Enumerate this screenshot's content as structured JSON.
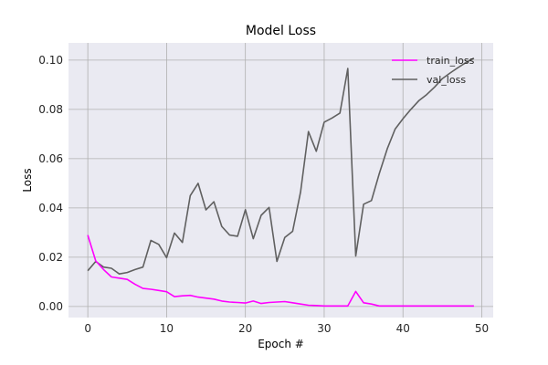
{
  "chart_data": {
    "type": "line",
    "title": "Model Loss",
    "xlabel": "Epoch #",
    "ylabel": "Loss",
    "xlim": [
      -2.45,
      51.45
    ],
    "ylim": [
      -0.0045,
      0.107
    ],
    "x_ticks": [
      0,
      10,
      20,
      30,
      40,
      50
    ],
    "y_ticks": [
      0.0,
      0.02,
      0.04,
      0.06,
      0.08,
      0.1
    ],
    "y_tick_labels": [
      "0.00",
      "0.02",
      "0.04",
      "0.06",
      "0.08",
      "0.10"
    ],
    "grid": true,
    "legend_position": "top-right",
    "x": [
      0,
      1,
      2,
      3,
      4,
      5,
      6,
      7,
      8,
      9,
      10,
      11,
      12,
      13,
      14,
      15,
      16,
      17,
      18,
      19,
      20,
      21,
      22,
      23,
      24,
      25,
      26,
      27,
      28,
      29,
      30,
      31,
      32,
      33,
      34,
      35,
      36,
      37,
      38,
      39,
      40,
      41,
      42,
      43,
      44,
      45,
      46,
      47,
      48,
      49
    ],
    "series": [
      {
        "name": "train_loss",
        "color": "#ff00ff",
        "values": [
          0.029,
          0.0185,
          0.015,
          0.012,
          0.0115,
          0.011,
          0.009,
          0.0073,
          0.007,
          0.0065,
          0.006,
          0.004,
          0.0043,
          0.0045,
          0.0038,
          0.0034,
          0.003,
          0.0022,
          0.0018,
          0.0016,
          0.0014,
          0.0022,
          0.0012,
          0.0016,
          0.0018,
          0.002,
          0.0015,
          0.001,
          0.0005,
          0.0004,
          0.0002,
          0.0002,
          0.0002,
          0.0002,
          0.0061,
          0.0015,
          0.001,
          0.0002,
          0.0002,
          0.0002,
          0.0002,
          0.0002,
          0.0002,
          0.0002,
          0.0002,
          0.0002,
          0.0002,
          0.0002,
          0.0002,
          0.0002
        ]
      },
      {
        "name": "val_loss",
        "color": "#606060",
        "values": [
          0.0145,
          0.0183,
          0.016,
          0.0155,
          0.0132,
          0.0138,
          0.015,
          0.016,
          0.0268,
          0.0252,
          0.0198,
          0.0298,
          0.026,
          0.045,
          0.05,
          0.0392,
          0.0425,
          0.0325,
          0.029,
          0.0285,
          0.0393,
          0.0275,
          0.037,
          0.0402,
          0.0183,
          0.028,
          0.0305,
          0.0465,
          0.071,
          0.063,
          0.0748,
          0.0765,
          0.0785,
          0.0966,
          0.0205,
          0.0415,
          0.043,
          0.054,
          0.064,
          0.072,
          0.0762,
          0.08,
          0.0835,
          0.086,
          0.089,
          0.0925,
          0.0948,
          0.097,
          0.099,
          0.1008
        ]
      }
    ]
  }
}
